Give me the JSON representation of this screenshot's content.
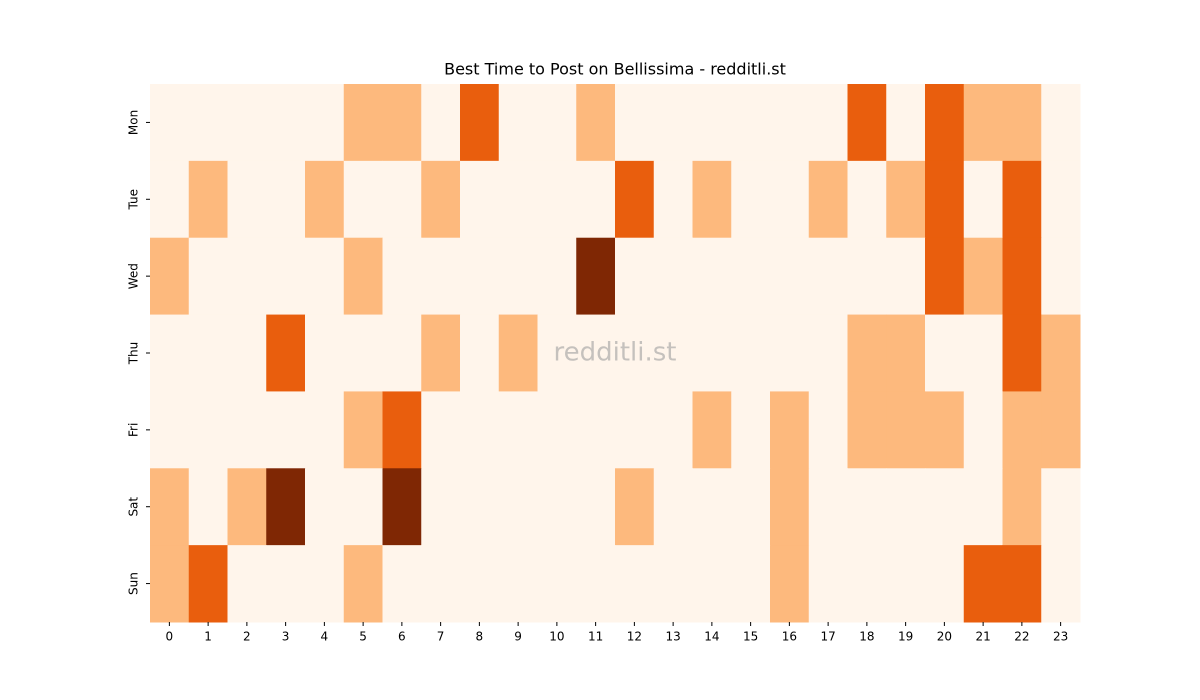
{
  "chart_data": {
    "type": "heatmap",
    "title": "Best Time to Post on Bellissima - redditli.st",
    "watermark": "redditli.st",
    "x": [
      0,
      1,
      2,
      3,
      4,
      5,
      6,
      7,
      8,
      9,
      10,
      11,
      12,
      13,
      14,
      15,
      16,
      17,
      18,
      19,
      20,
      21,
      22,
      23
    ],
    "y": [
      "Mon",
      "Tue",
      "Wed",
      "Thu",
      "Fri",
      "Sat",
      "Sun"
    ],
    "colors": [
      "#fff5eb",
      "#fdb97d",
      "#e95e0d",
      "#7f2704"
    ],
    "values": [
      [
        0,
        0,
        0,
        0,
        0,
        1,
        1,
        0,
        2,
        0,
        0,
        1,
        0,
        0,
        0,
        0,
        0,
        0,
        2,
        0,
        2,
        1,
        1,
        0
      ],
      [
        0,
        1,
        0,
        0,
        1,
        0,
        0,
        1,
        0,
        0,
        0,
        0,
        2,
        0,
        1,
        0,
        0,
        1,
        0,
        1,
        2,
        0,
        2,
        0
      ],
      [
        1,
        0,
        0,
        0,
        0,
        1,
        0,
        0,
        0,
        0,
        0,
        3,
        0,
        0,
        0,
        0,
        0,
        0,
        0,
        0,
        2,
        1,
        2,
        0
      ],
      [
        0,
        0,
        0,
        2,
        0,
        0,
        0,
        1,
        0,
        1,
        0,
        0,
        0,
        0,
        0,
        0,
        0,
        0,
        1,
        1,
        0,
        0,
        2,
        1
      ],
      [
        0,
        0,
        0,
        0,
        0,
        1,
        2,
        0,
        0,
        0,
        0,
        0,
        0,
        0,
        1,
        0,
        1,
        0,
        1,
        1,
        1,
        0,
        1,
        1
      ],
      [
        1,
        0,
        1,
        3,
        0,
        0,
        3,
        0,
        0,
        0,
        0,
        0,
        1,
        0,
        0,
        0,
        1,
        0,
        0,
        0,
        0,
        0,
        1,
        0
      ],
      [
        1,
        2,
        0,
        0,
        0,
        1,
        0,
        0,
        0,
        0,
        0,
        0,
        0,
        0,
        0,
        0,
        1,
        0,
        0,
        0,
        0,
        2,
        2,
        0
      ]
    ]
  }
}
